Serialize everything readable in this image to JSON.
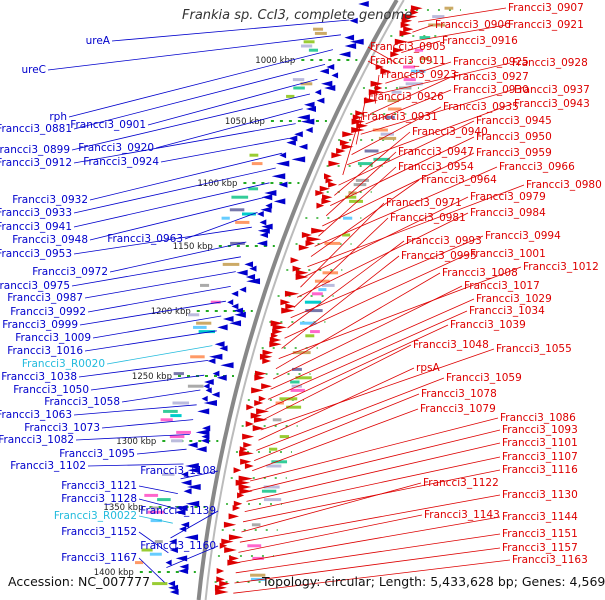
{
  "header": {
    "title": "Frankia sp. CcI3, complete genome"
  },
  "footer": {
    "accession": "Accession: NC_007777",
    "summary": "Topology: circular; Length: 5,433,628 bp; Genes: 4,569"
  },
  "colors": {
    "left_gene": "#0000cc",
    "right_gene": "#dd0000",
    "rna_gene": "#22bbdd",
    "backbone": "#888888",
    "tick": "#22aa22"
  },
  "kbp_ticks": [
    "1000 kbp",
    "1050 kbp",
    "1100 kbp",
    "1150 kbp",
    "1200 kbp",
    "1250 kbp",
    "1300 kbp",
    "1350 kbp",
    "1400 kbp"
  ],
  "left_labels": [
    {
      "text": "ureA",
      "type": "cds"
    },
    {
      "text": "ureC",
      "type": "cds"
    },
    {
      "text": "rph",
      "type": "cds"
    },
    {
      "text": "Francci3_0881",
      "type": "cds"
    },
    {
      "text": "Francci3_0901",
      "type": "cds"
    },
    {
      "text": "Francci3_0899",
      "type": "cds"
    },
    {
      "text": "Francci3_0920",
      "type": "cds"
    },
    {
      "text": "Francci3_0912",
      "type": "cds"
    },
    {
      "text": "Francci3_0924",
      "type": "cds"
    },
    {
      "text": "Francci3_0932",
      "type": "cds"
    },
    {
      "text": "Francci3_0933",
      "type": "cds"
    },
    {
      "text": "Francci3_0941",
      "type": "cds"
    },
    {
      "text": "Francci3_0948",
      "type": "cds"
    },
    {
      "text": "Francci3_0963",
      "type": "cds"
    },
    {
      "text": "Francci3_0953",
      "type": "cds"
    },
    {
      "text": "Francci3_0972",
      "type": "cds"
    },
    {
      "text": "Francci3_0975",
      "type": "cds"
    },
    {
      "text": "Francci3_0987",
      "type": "cds"
    },
    {
      "text": "Francci3_0992",
      "type": "cds"
    },
    {
      "text": "Francci3_0999",
      "type": "cds"
    },
    {
      "text": "Francci3_1009",
      "type": "cds"
    },
    {
      "text": "Francci3_1016",
      "type": "cds"
    },
    {
      "text": "Francci3_R0020",
      "type": "rna"
    },
    {
      "text": "Francci3_1038",
      "type": "cds"
    },
    {
      "text": "Francci3_1050",
      "type": "cds"
    },
    {
      "text": "Francci3_1058",
      "type": "cds"
    },
    {
      "text": "Francci3_1063",
      "type": "cds"
    },
    {
      "text": "Francci3_1073",
      "type": "cds"
    },
    {
      "text": "Francci3_1082",
      "type": "cds"
    },
    {
      "text": "Francci3_1095",
      "type": "cds"
    },
    {
      "text": "Francci3_1102",
      "type": "cds"
    },
    {
      "text": "Francci3_1108",
      "type": "cds"
    },
    {
      "text": "Francci3_1121",
      "type": "cds"
    },
    {
      "text": "Francci3_1128",
      "type": "cds"
    },
    {
      "text": "Francci3_R0022",
      "type": "rna"
    },
    {
      "text": "Francci3_1139",
      "type": "cds"
    },
    {
      "text": "Francci3_1152",
      "type": "cds"
    },
    {
      "text": "Francci3_1160",
      "type": "cds"
    },
    {
      "text": "Francci3_1167",
      "type": "cds"
    }
  ],
  "right_labels": [
    "Francci3_0907",
    "Francci3_0906",
    "Francci3_0921",
    "Francci3_0916",
    "Francci3_0905",
    "Francci3_0911",
    "Francci3_0925",
    "Francci3_0928",
    "Francci3_0923",
    "Francci3_0927",
    "Francci3_0930",
    "Francci3_0937",
    "Francci3_0926",
    "Francci3_0935",
    "Francci3_0943",
    "Francci3_0931",
    "Francci3_0945",
    "Francci3_0940",
    "Francci3_0950",
    "Francci3_0947",
    "Francci3_0959",
    "Francci3_0954",
    "Francci3_0966",
    "Francci3_0964",
    "Francci3_0980",
    "Francci3_0979",
    "Francci3_0971",
    "Francci3_0984",
    "Francci3_0981",
    "Francci3_0994",
    "Francci3_0993",
    "Francci3_1001",
    "Francci3_0995",
    "Francci3_1012",
    "Francci3_1008",
    "Francci3_1017",
    "Francci3_1029",
    "Francci3_1034",
    "Francci3_1039",
    "Francci3_1048",
    "Francci3_1055",
    "rpsA",
    "Francci3_1059",
    "Francci3_1078",
    "Francci3_1079",
    "Francci3_1086",
    "Francci3_1093",
    "Francci3_1101",
    "Francci3_1107",
    "Francci3_1116",
    "Francci3_1122",
    "Francci3_1130",
    "Francci3_1143",
    "Francci3_1144",
    "Francci3_1151",
    "Francci3_1157",
    "Francci3_1163"
  ]
}
